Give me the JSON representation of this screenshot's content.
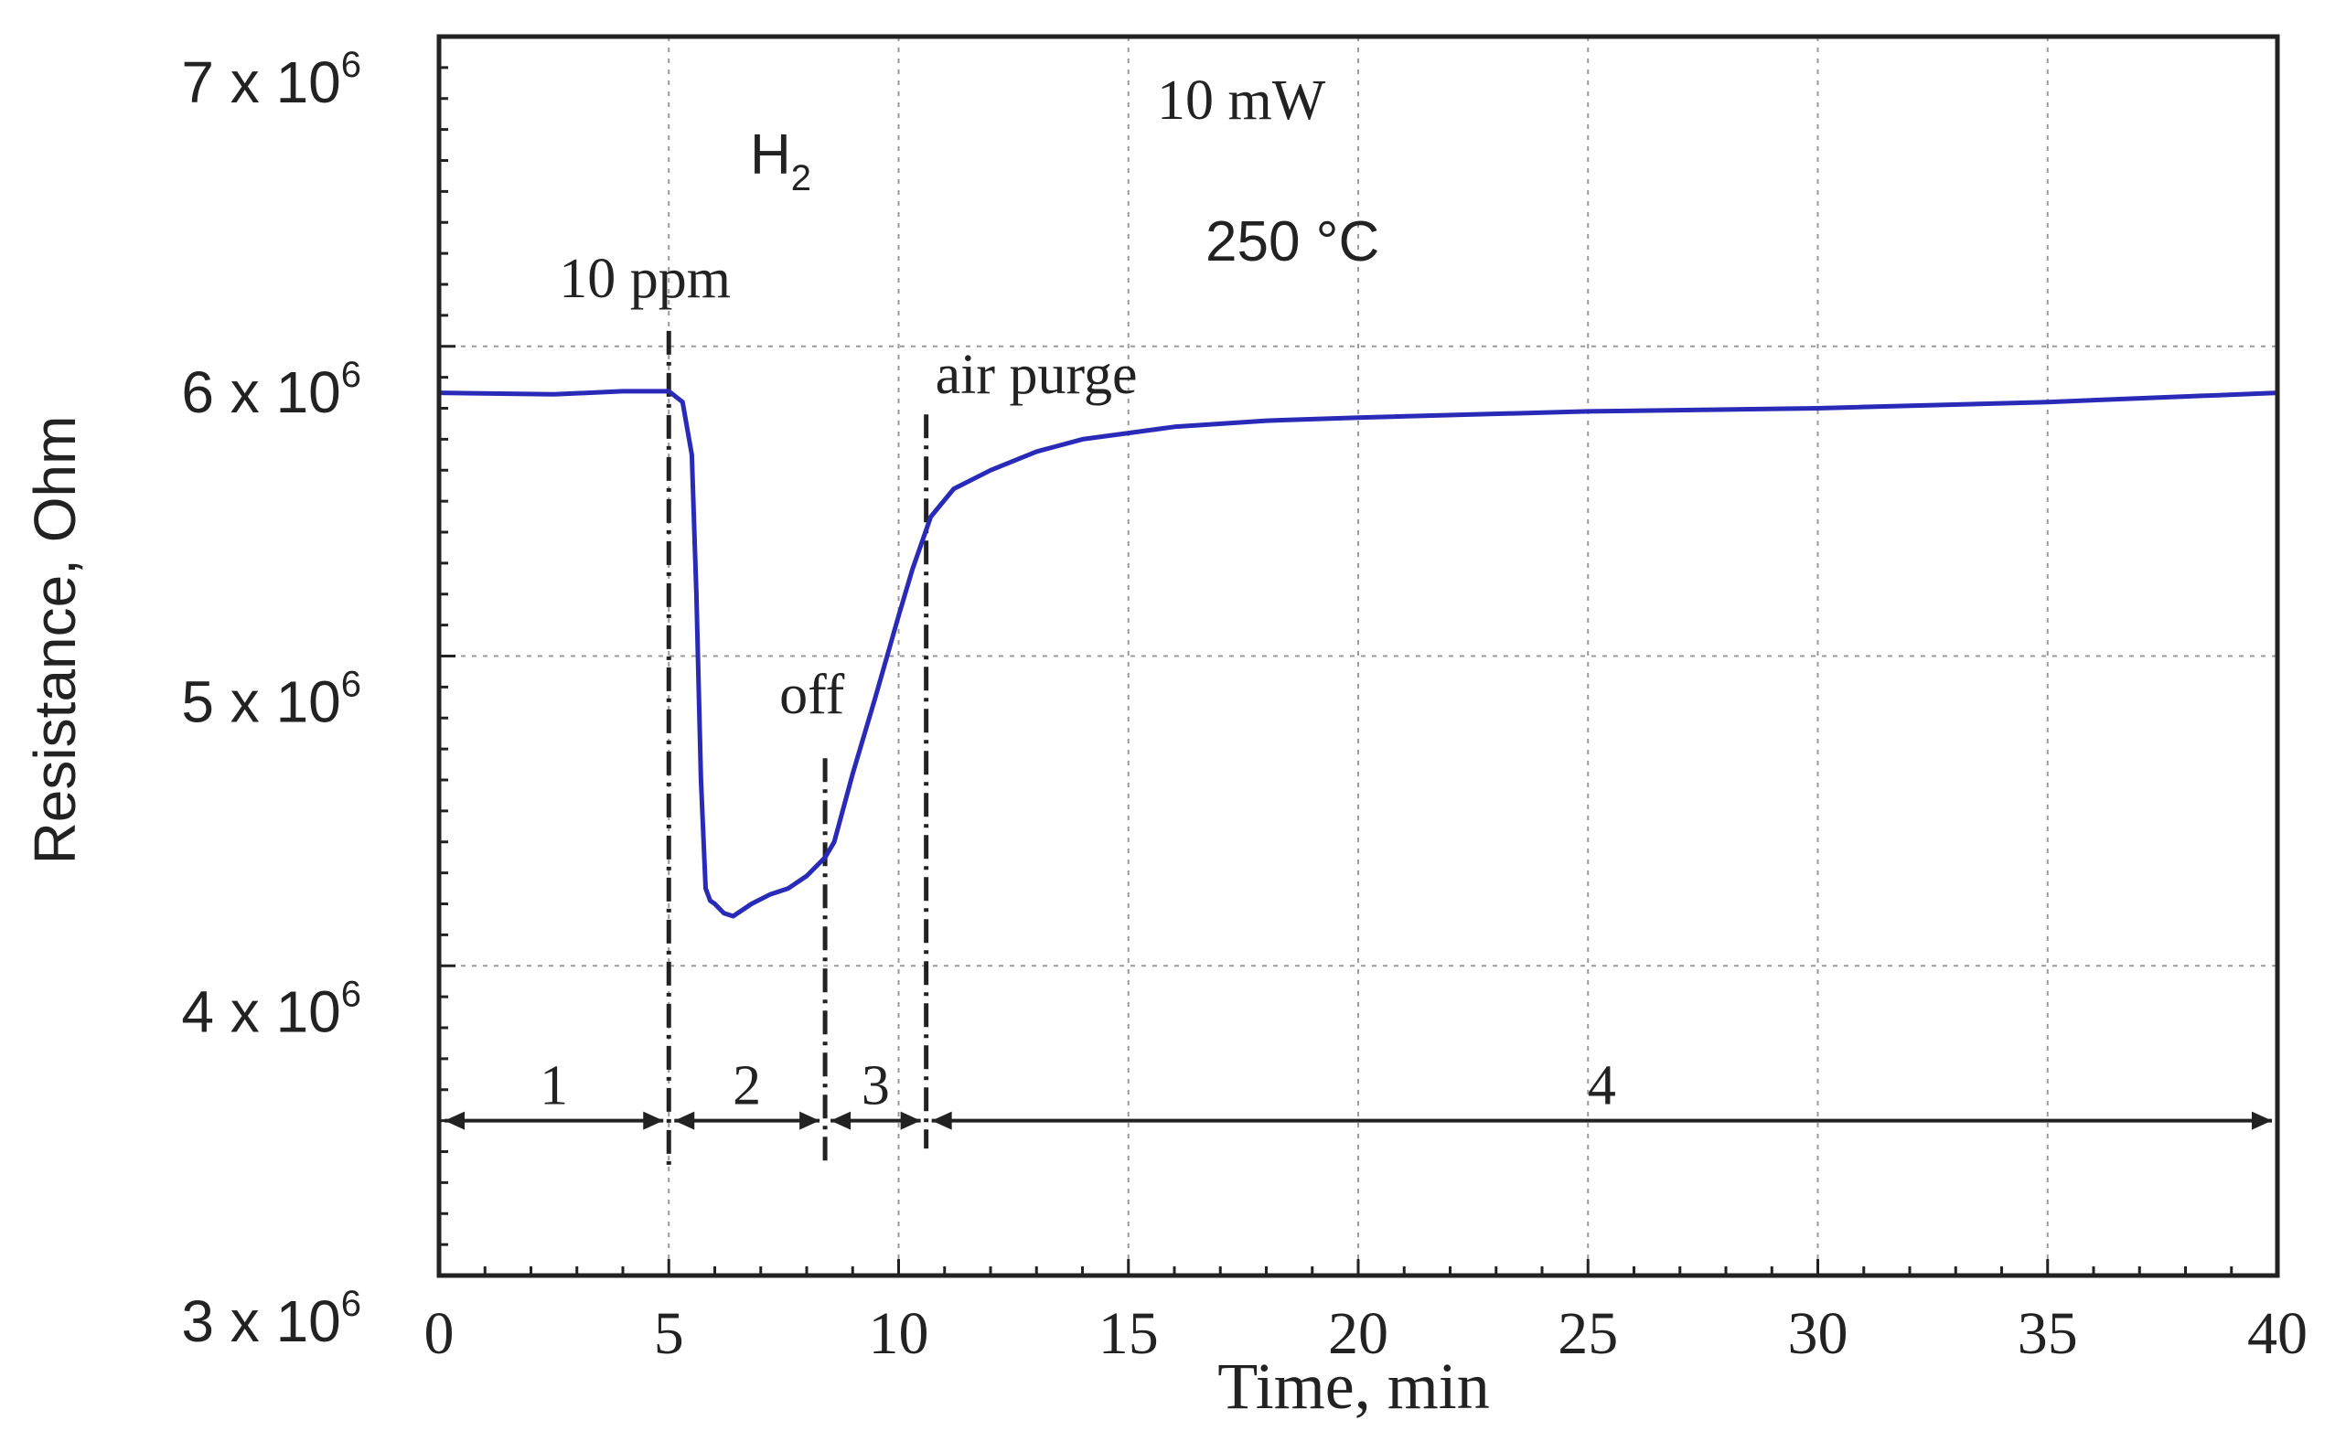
{
  "chart_data": {
    "type": "line",
    "title": "",
    "xlabel": "Time, min",
    "ylabel": "Resistance, Ohm",
    "xlim": [
      0,
      40
    ],
    "ylim": [
      3000000,
      7000000
    ],
    "grid": true,
    "x_ticks": [
      0,
      5,
      10,
      15,
      20,
      25,
      30,
      35,
      40
    ],
    "x_tick_labels": [
      "0",
      "5",
      "10",
      "15",
      "20",
      "25",
      "30",
      "35",
      "40"
    ],
    "y_ticks": [
      3000000,
      4000000,
      5000000,
      6000000,
      7000000
    ],
    "y_tick_labels": [
      {
        "base": "3 x 10",
        "exp": "6"
      },
      {
        "base": "4 x 10",
        "exp": "6"
      },
      {
        "base": "5 x 10",
        "exp": "6"
      },
      {
        "base": "6 x 10",
        "exp": "6"
      },
      {
        "base": "7 x 10",
        "exp": "6"
      }
    ],
    "series": [
      {
        "name": "Resistance",
        "color": "#2a2ab8",
        "x": [
          0,
          2.5,
          4,
          5,
          5.3,
          5.5,
          5.6,
          5.7,
          5.8,
          5.9,
          6.0,
          6.2,
          6.4,
          6.8,
          7.2,
          7.6,
          8.0,
          8.4,
          8.6,
          9.0,
          9.5,
          10.0,
          10.3,
          10.7,
          11.2,
          12,
          13,
          14,
          15,
          16,
          18,
          20,
          25,
          30,
          35,
          40
        ],
        "values": [
          5850000,
          5845000,
          5855000,
          5855000,
          5820000,
          5650000,
          5200000,
          4600000,
          4250000,
          4210000,
          4200000,
          4170000,
          4160000,
          4200000,
          4230000,
          4250000,
          4290000,
          4350000,
          4400000,
          4620000,
          4870000,
          5130000,
          5280000,
          5450000,
          5540000,
          5600000,
          5660000,
          5700000,
          5720000,
          5740000,
          5760000,
          5770000,
          5790000,
          5800000,
          5820000,
          5850000
        ]
      }
    ],
    "markers": [
      {
        "x": 5.0,
        "y_top": 6050000,
        "y_bottom": 3350000,
        "label": "10 ppm"
      },
      {
        "x": 8.4,
        "y_top": 4670000,
        "y_bottom": 3370000,
        "label": "off"
      },
      {
        "x": 10.6,
        "y_top": 5780000,
        "y_bottom": 3410000,
        "label": "air purge"
      }
    ],
    "regions": [
      {
        "label": "1",
        "from": 0,
        "to": 5.0
      },
      {
        "label": "2",
        "from": 5.0,
        "to": 8.4
      },
      {
        "label": "3",
        "from": 8.4,
        "to": 10.6
      },
      {
        "label": "4",
        "from": 10.6,
        "to": 40
      }
    ],
    "region_arrow_y": 3500000,
    "annotations": {
      "gas": "H",
      "gas_sub": "2",
      "power": "10 mW",
      "temperature": "250 °C"
    }
  }
}
